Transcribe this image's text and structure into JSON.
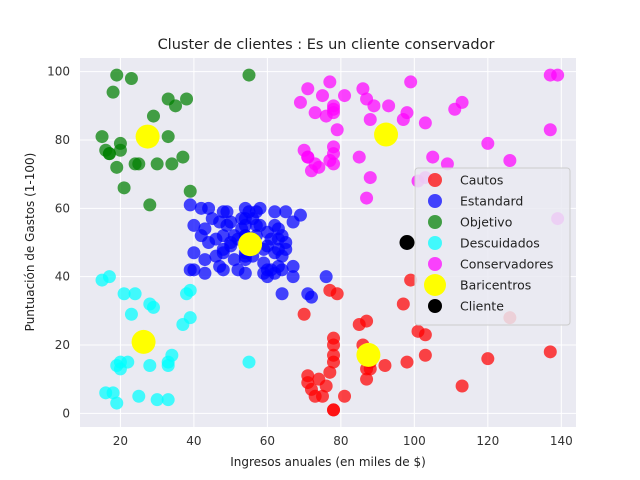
{
  "chart_data": {
    "type": "scatter",
    "title": "Cluster de clientes : Es un cliente conservador",
    "xlabel": "Ingresos anuales (en miles de $)",
    "ylabel": "Puntuación de Gastos (1-100)",
    "xlim": [
      9,
      144
    ],
    "ylim": [
      -4,
      104
    ],
    "xticks": [
      20,
      40,
      60,
      80,
      100,
      120,
      140
    ],
    "yticks": [
      0,
      20,
      40,
      60,
      80,
      100
    ],
    "grid": true,
    "legend_position": "right",
    "series": [
      {
        "name": "Cautos",
        "color": "#ff0000",
        "points": [
          [
            70,
            29
          ],
          [
            71,
            11
          ],
          [
            71,
            9
          ],
          [
            72,
            7
          ],
          [
            73,
            5
          ],
          [
            74,
            10
          ],
          [
            75,
            5
          ],
          [
            76,
            8
          ],
          [
            77,
            12
          ],
          [
            77,
            36
          ],
          [
            78,
            15
          ],
          [
            78,
            17
          ],
          [
            78,
            20
          ],
          [
            78,
            22
          ],
          [
            78,
            1
          ],
          [
            78,
            1
          ],
          [
            79,
            35
          ],
          [
            81,
            5
          ],
          [
            85,
            26
          ],
          [
            86,
            20
          ],
          [
            87,
            13
          ],
          [
            87,
            10
          ],
          [
            87,
            27
          ],
          [
            88,
            13
          ],
          [
            88,
            15
          ],
          [
            92,
            14
          ],
          [
            97,
            32
          ],
          [
            98,
            15
          ],
          [
            99,
            39
          ],
          [
            101,
            24
          ],
          [
            103,
            23
          ],
          [
            103,
            17
          ],
          [
            113,
            8
          ],
          [
            120,
            16
          ],
          [
            126,
            28
          ],
          [
            137,
            18
          ]
        ]
      },
      {
        "name": "Estandard",
        "color": "#0000ff",
        "points": [
          [
            39,
            61
          ],
          [
            39,
            42
          ],
          [
            40,
            47
          ],
          [
            40,
            55
          ],
          [
            40,
            42
          ],
          [
            42,
            52
          ],
          [
            42,
            60
          ],
          [
            43,
            41
          ],
          [
            43,
            45
          ],
          [
            43,
            54
          ],
          [
            44,
            50
          ],
          [
            44,
            60
          ],
          [
            45,
            57
          ],
          [
            46,
            51
          ],
          [
            46,
            46
          ],
          [
            47,
            43
          ],
          [
            47,
            56
          ],
          [
            48,
            48
          ],
          [
            48,
            59
          ],
          [
            48,
            47
          ],
          [
            48,
            52
          ],
          [
            48,
            42
          ],
          [
            49,
            55
          ],
          [
            49,
            59
          ],
          [
            50,
            49
          ],
          [
            50,
            56
          ],
          [
            51,
            52
          ],
          [
            51,
            45
          ],
          [
            52,
            42
          ],
          [
            52,
            51
          ],
          [
            53,
            54
          ],
          [
            54,
            46
          ],
          [
            54,
            47
          ],
          [
            54,
            57
          ],
          [
            54,
            52
          ],
          [
            54,
            55
          ],
          [
            54,
            60
          ],
          [
            54,
            41
          ],
          [
            54,
            45
          ],
          [
            55,
            49
          ],
          [
            56,
            46
          ],
          [
            56,
            57
          ],
          [
            57,
            55
          ],
          [
            57,
            52
          ],
          [
            57,
            59
          ],
          [
            58,
            60
          ],
          [
            58,
            55
          ],
          [
            59,
            41
          ],
          [
            59,
            48
          ],
          [
            60,
            40
          ],
          [
            60,
            42
          ],
          [
            60,
            53
          ],
          [
            60,
            49
          ],
          [
            61,
            42
          ],
          [
            62,
            55
          ],
          [
            62,
            59
          ],
          [
            62,
            47
          ],
          [
            62,
            41
          ],
          [
            63,
            54
          ],
          [
            63,
            51
          ],
          [
            63,
            43
          ],
          [
            63,
            48
          ],
          [
            64,
            46
          ],
          [
            64,
            42
          ],
          [
            64,
            52
          ],
          [
            64,
            35
          ],
          [
            65,
            48
          ],
          [
            65,
            50
          ],
          [
            65,
            59
          ],
          [
            67,
            56
          ],
          [
            67,
            40
          ],
          [
            67,
            43
          ],
          [
            69,
            58
          ],
          [
            71,
            35
          ],
          [
            72,
            34
          ],
          [
            76,
            40
          ],
          [
            54,
            52
          ],
          [
            55,
            59
          ],
          [
            59,
            44
          ],
          [
            61,
            51
          ],
          [
            56,
            51
          ],
          [
            53,
            57
          ],
          [
            50,
            50
          ]
        ]
      },
      {
        "name": "Objetivo",
        "color": "#008000",
        "points": [
          [
            15,
            81
          ],
          [
            16,
            77
          ],
          [
            17,
            76
          ],
          [
            18,
            94
          ],
          [
            19,
            99
          ],
          [
            19,
            72
          ],
          [
            20,
            77
          ],
          [
            20,
            79
          ],
          [
            21,
            66
          ],
          [
            23,
            98
          ],
          [
            24,
            73
          ],
          [
            25,
            73
          ],
          [
            28,
            82
          ],
          [
            28,
            61
          ],
          [
            29,
            87
          ],
          [
            30,
            73
          ],
          [
            33,
            92
          ],
          [
            33,
            81
          ],
          [
            34,
            73
          ],
          [
            35,
            90
          ],
          [
            37,
            75
          ],
          [
            38,
            92
          ],
          [
            39,
            65
          ],
          [
            55,
            99
          ],
          [
            17,
            76
          ]
        ]
      },
      {
        "name": "Descuidados",
        "color": "#00ffff",
        "points": [
          [
            15,
            39
          ],
          [
            16,
            6
          ],
          [
            17,
            40
          ],
          [
            18,
            6
          ],
          [
            19,
            3
          ],
          [
            19,
            14
          ],
          [
            20,
            15
          ],
          [
            20,
            13
          ],
          [
            21,
            35
          ],
          [
            22,
            15
          ],
          [
            23,
            29
          ],
          [
            24,
            35
          ],
          [
            25,
            5
          ],
          [
            28,
            32
          ],
          [
            28,
            14
          ],
          [
            29,
            31
          ],
          [
            30,
            4
          ],
          [
            33,
            4
          ],
          [
            33,
            14
          ],
          [
            33,
            15
          ],
          [
            34,
            17
          ],
          [
            37,
            26
          ],
          [
            38,
            35
          ],
          [
            39,
            36
          ],
          [
            39,
            28
          ],
          [
            55,
            15
          ]
        ]
      },
      {
        "name": "Conservadores",
        "color": "#ff00ff",
        "points": [
          [
            69,
            91
          ],
          [
            70,
            77
          ],
          [
            71,
            95
          ],
          [
            71,
            75
          ],
          [
            71,
            75
          ],
          [
            72,
            71
          ],
          [
            73,
            88
          ],
          [
            73,
            73
          ],
          [
            74,
            72
          ],
          [
            75,
            93
          ],
          [
            76,
            87
          ],
          [
            77,
            97
          ],
          [
            77,
            74
          ],
          [
            78,
            90
          ],
          [
            78,
            88
          ],
          [
            78,
            76
          ],
          [
            78,
            89
          ],
          [
            78,
            78
          ],
          [
            78,
            73
          ],
          [
            79,
            83
          ],
          [
            81,
            93
          ],
          [
            85,
            75
          ],
          [
            86,
            95
          ],
          [
            87,
            63
          ],
          [
            87,
            92
          ],
          [
            88,
            86
          ],
          [
            88,
            69
          ],
          [
            89,
            90
          ],
          [
            93,
            90
          ],
          [
            97,
            86
          ],
          [
            98,
            88
          ],
          [
            99,
            97
          ],
          [
            101,
            68
          ],
          [
            103,
            85
          ],
          [
            103,
            69
          ],
          [
            105,
            75
          ],
          [
            109,
            73
          ],
          [
            111,
            89
          ],
          [
            113,
            91
          ],
          [
            120,
            79
          ],
          [
            126,
            74
          ],
          [
            137,
            99
          ],
          [
            137,
            83
          ],
          [
            139,
            99
          ],
          [
            139,
            57
          ]
        ]
      },
      {
        "name": "Baricentros",
        "color": "#ffff00",
        "marker": "large",
        "points": [
          [
            27.4,
            81
          ],
          [
            55.3,
            49.5
          ],
          [
            26.3,
            20.9
          ],
          [
            87.5,
            17.1
          ],
          [
            92.3,
            81.6
          ]
        ]
      },
      {
        "name": "Cliente",
        "color": "#000000",
        "points": [
          [
            98,
            50
          ]
        ]
      }
    ]
  }
}
